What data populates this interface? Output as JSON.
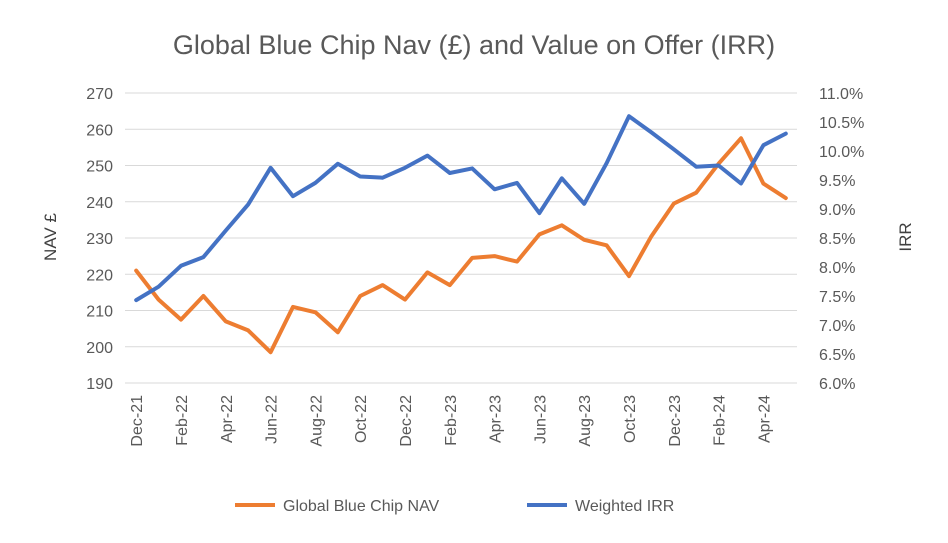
{
  "chart_data": {
    "type": "line",
    "title": "Global Blue Chip Nav (£) and Value on Offer (IRR)",
    "ylabel_left": "NAV £",
    "ylabel_right": "IRR",
    "ylim_left": [
      190,
      270
    ],
    "ylim_right": [
      0.06,
      0.11
    ],
    "yticks_left": [
      "190",
      "200",
      "210",
      "220",
      "230",
      "240",
      "250",
      "260",
      "270"
    ],
    "yticks_right": [
      "6.0%",
      "6.5%",
      "7.0%",
      "7.5%",
      "8.0%",
      "8.5%",
      "9.0%",
      "9.5%",
      "10.0%",
      "10.5%",
      "11.0%"
    ],
    "x_tick_labels": [
      "Dec-21",
      "Feb-22",
      "Apr-22",
      "Jun-22",
      "Aug-22",
      "Oct-22",
      "Dec-22",
      "Feb-23",
      "Apr-23",
      "Jun-23",
      "Aug-23",
      "Oct-23",
      "Dec-23",
      "Feb-24",
      "Apr-24"
    ],
    "x": [
      "Dec-21",
      "Jan-22",
      "Feb-22",
      "Mar-22",
      "Apr-22",
      "May-22",
      "Jun-22",
      "Jul-22",
      "Aug-22",
      "Sep-22",
      "Oct-22",
      "Nov-22",
      "Dec-22",
      "Jan-23",
      "Feb-23",
      "Mar-23",
      "Apr-23",
      "May-23",
      "Jun-23",
      "Jul-23",
      "Aug-23",
      "Sep-23",
      "Oct-23",
      "Nov-23",
      "Dec-23",
      "Jan-24",
      "Feb-24",
      "Mar-24",
      "Apr-24",
      "May-24"
    ],
    "grid": true,
    "legend_position": "bottom",
    "series": [
      {
        "name": "Global Blue Chip NAV",
        "axis": "left",
        "color": "#ed7d31",
        "values": [
          221,
          213,
          207.5,
          214,
          207,
          204.5,
          198.5,
          211,
          209.5,
          204,
          214,
          217,
          213,
          220.5,
          217,
          224.5,
          225,
          223.5,
          231,
          233.5,
          229.5,
          228,
          219.5,
          230.5,
          239.5,
          242.5,
          250.5,
          257.5,
          245,
          241
        ]
      },
      {
        "name": "Weighted IRR",
        "axis": "right",
        "color": "#4472c4",
        "values": [
          0.0743,
          0.0766,
          0.0802,
          0.0817,
          0.0863,
          0.0908,
          0.0971,
          0.0922,
          0.0945,
          0.0978,
          0.0956,
          0.0954,
          0.0971,
          0.0992,
          0.0962,
          0.097,
          0.0934,
          0.0945,
          0.0893,
          0.0953,
          0.0909,
          0.0979,
          0.106,
          0.1032,
          0.1003,
          0.0973,
          0.0975,
          0.0944,
          0.101,
          0.103
        ]
      }
    ]
  }
}
